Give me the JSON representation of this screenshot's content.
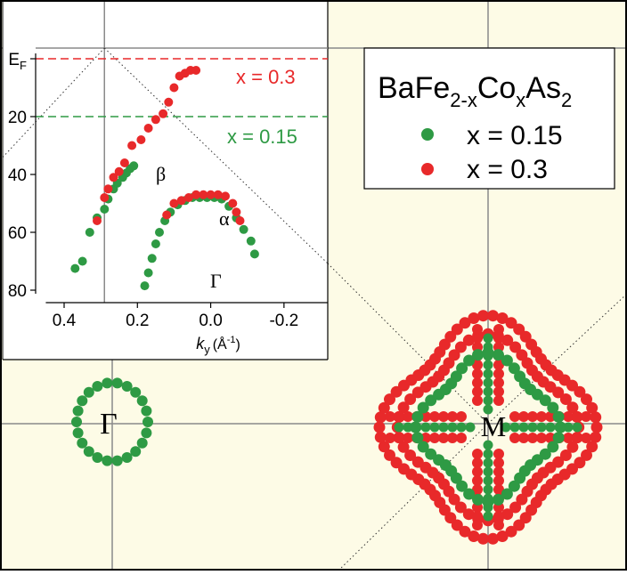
{
  "colors": {
    "background": "#fdfbe6",
    "green": "#2e9a44",
    "red": "#e8292a",
    "grid": "#8a8a8a",
    "inset_bg": "#ffffff",
    "frame": "#000000"
  },
  "brillouin": {
    "gamma_label": "Γ",
    "m_label": "M"
  },
  "legend": {
    "title_parts": [
      "BaFe",
      "2-x",
      "Co",
      "x",
      "As",
      "2"
    ],
    "items": [
      {
        "label": "x = 0.15",
        "color": "#2e9a44"
      },
      {
        "label": "x = 0.3",
        "color": "#e8292a"
      }
    ]
  },
  "chart_data": [
    {
      "type": "scatter",
      "panel": "inset band dispersion",
      "xlabel": "k",
      "xlabel_sub": "y",
      "xlabel_unit": "(Å",
      "xlabel_exp": "-1",
      "xlabel_end": ")",
      "xlim": [
        0.45,
        -0.35
      ],
      "ylim": [
        84,
        -6
      ],
      "x_ticks": [
        {
          "v": 0.4,
          "label": "0.4"
        },
        {
          "v": 0.2,
          "label": "0.2"
        },
        {
          "v": 0.0,
          "label": "0.0"
        },
        {
          "v": -0.2,
          "label": "-0.2"
        }
      ],
      "y_ticks": [
        {
          "v": 0,
          "label": "E",
          "sub": "F"
        },
        {
          "v": 20,
          "label": "20"
        },
        {
          "v": 40,
          "label": "40"
        },
        {
          "v": 60,
          "label": "60"
        },
        {
          "v": 80,
          "label": "80"
        }
      ],
      "reference_lines": [
        {
          "y": 0,
          "label": "x = 0.3",
          "color": "#e8292a"
        },
        {
          "y": 20,
          "label": "x = 0.15",
          "color": "#2e9a44"
        }
      ],
      "annotations": {
        "beta": "β",
        "alpha": "α",
        "gamma": "Γ"
      },
      "series": [
        {
          "name": "x = 0.15",
          "color": "#2e9a44",
          "beta": [
            [
              0.37,
              72.5
            ],
            [
              0.35,
              70
            ],
            [
              0.33,
              60
            ],
            [
              0.31,
              55
            ],
            [
              0.29,
              52
            ],
            [
              0.28,
              48.5
            ],
            [
              0.265,
              45
            ],
            [
              0.255,
              43
            ],
            [
              0.24,
              41
            ],
            [
              0.23,
              39.5
            ],
            [
              0.22,
              38
            ],
            [
              0.21,
              37
            ]
          ],
          "alpha": [
            [
              0.18,
              78.5
            ],
            [
              0.17,
              74
            ],
            [
              0.16,
              69
            ],
            [
              0.15,
              64
            ],
            [
              0.14,
              60
            ],
            [
              0.125,
              56
            ],
            [
              0.11,
              53
            ],
            [
              0.09,
              50.5
            ],
            [
              0.07,
              49
            ],
            [
              0.05,
              48
            ],
            [
              0.03,
              48
            ],
            [
              0.01,
              48
            ],
            [
              -0.01,
              48
            ],
            [
              -0.03,
              48.5
            ],
            [
              -0.05,
              51
            ],
            [
              -0.07,
              55
            ],
            [
              -0.09,
              59
            ],
            [
              -0.11,
              63
            ],
            [
              -0.12,
              67.5
            ]
          ]
        },
        {
          "name": "x = 0.3",
          "color": "#e8292a",
          "beta": [
            [
              0.31,
              56
            ],
            [
              0.29,
              48
            ],
            [
              0.28,
              45
            ],
            [
              0.265,
              41
            ],
            [
              0.25,
              39
            ],
            [
              0.235,
              36
            ],
            [
              0.215,
              30
            ],
            [
              0.19,
              28
            ],
            [
              0.17,
              24
            ],
            [
              0.15,
              21
            ],
            [
              0.13,
              19
            ],
            [
              0.115,
              15
            ],
            [
              0.1,
              10
            ],
            [
              0.085,
              6
            ],
            [
              0.07,
              5
            ],
            [
              0.055,
              4
            ],
            [
              0.04,
              4
            ]
          ],
          "alpha": [
            [
              0.12,
              54
            ],
            [
              0.1,
              50
            ],
            [
              0.08,
              49
            ],
            [
              0.06,
              48
            ],
            [
              0.04,
              47
            ],
            [
              0.02,
              47
            ],
            [
              0.0,
              47
            ],
            [
              -0.02,
              47
            ],
            [
              -0.04,
              47.5
            ],
            [
              -0.06,
              50
            ],
            [
              -0.07,
              53
            ],
            [
              -0.08,
              56
            ]
          ]
        }
      ]
    },
    {
      "type": "scatter",
      "panel": "Fermi surface",
      "pockets": [
        {
          "center": "Γ",
          "doping": "x = 0.15",
          "color": "#2e9a44",
          "points": 22
        },
        {
          "center": "M",
          "doping": "x = 0.15",
          "color": "#2e9a44",
          "points": 120
        },
        {
          "center": "M",
          "doping": "x = 0.3",
          "color": "#e8292a",
          "points": 180
        }
      ]
    }
  ]
}
